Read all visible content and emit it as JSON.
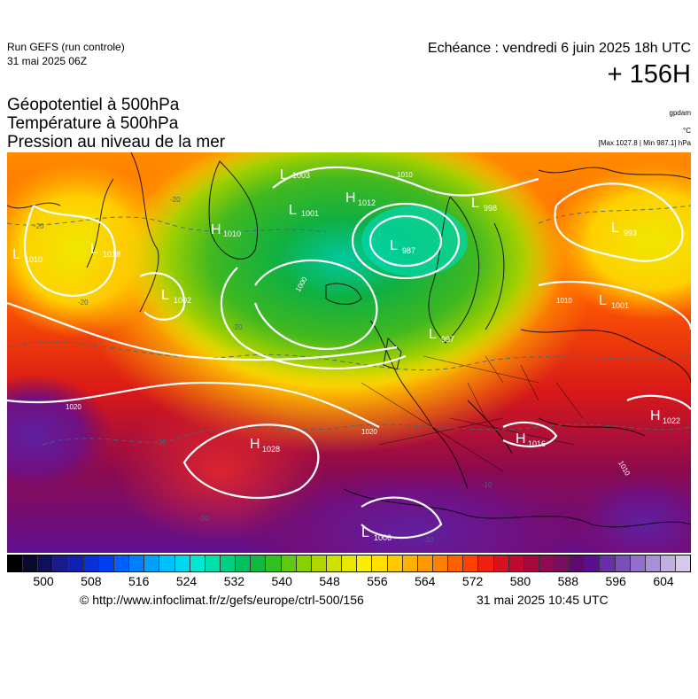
{
  "header": {
    "run_title": "Run GEFS (run controle)",
    "run_date": "31 mai 2025 06Z",
    "echeance": "Echéance : vendredi 6 juin 2025 18h UTC",
    "lead_time": "+ 156H",
    "title_lines": [
      "Géopotentiel à 500hPa",
      "Température à 500hPa",
      "Pression au niveau de la mer"
    ],
    "unit_geopotential": "gpdam",
    "unit_temperature": "°C",
    "unit_pressure": "[Max 1027.8 | Min 987.1] hPa"
  },
  "map": {
    "pressure_centers": [
      {
        "type": "L",
        "value": "1003"
      },
      {
        "type": "L",
        "value": "1001"
      },
      {
        "type": "H",
        "value": "1010"
      },
      {
        "type": "H",
        "value": "1012"
      },
      {
        "type": "L",
        "value": "987"
      },
      {
        "type": "L",
        "value": "998"
      },
      {
        "type": "L",
        "value": "993"
      },
      {
        "type": "L",
        "value": "1010"
      },
      {
        "type": "L",
        "value": "1018"
      },
      {
        "type": "L",
        "value": "1002"
      },
      {
        "type": "L",
        "value": "1001"
      },
      {
        "type": "L",
        "value": "997"
      },
      {
        "type": "H",
        "value": "1028"
      },
      {
        "type": "H",
        "value": "1016"
      },
      {
        "type": "H",
        "value": "1022"
      },
      {
        "type": "L",
        "value": "1006"
      }
    ],
    "isobar_labels": [
      "1010",
      "1000",
      "1020",
      "1010",
      "1020",
      "1010"
    ],
    "temperature_labels": [
      "-20",
      "-20",
      "-20",
      "-20",
      "-10",
      "-10",
      "-10",
      "-10"
    ]
  },
  "colorbar": {
    "tick_labels": [
      "500",
      "508",
      "516",
      "524",
      "532",
      "540",
      "548",
      "556",
      "564",
      "572",
      "580",
      "588",
      "596",
      "604"
    ],
    "colors": [
      "#000000",
      "#0a0a2e",
      "#10105a",
      "#1a1a88",
      "#1020b0",
      "#0a2ed8",
      "#0040f0",
      "#0060ff",
      "#0080ff",
      "#00a0ff",
      "#00c0ff",
      "#00d8f0",
      "#00e8d0",
      "#00e0a8",
      "#00d080",
      "#00c060",
      "#10b840",
      "#30c020",
      "#60c810",
      "#88d000",
      "#b0d800",
      "#d0e000",
      "#e8e800",
      "#f8f000",
      "#ffe000",
      "#ffc800",
      "#ffb000",
      "#ff9800",
      "#ff8000",
      "#ff6000",
      "#ff4000",
      "#f02010",
      "#d81020",
      "#c00830",
      "#a80840",
      "#900a50",
      "#780c60",
      "#600a70",
      "#581090",
      "#6830a8",
      "#7850b8",
      "#9070c8",
      "#a890d8",
      "#c0b0e0",
      "#d8c8ea"
    ]
  },
  "footer": {
    "source": "© http://www.infoclimat.fr/z/gefs/europe/ctrl-500/156",
    "issued": "31 mai 2025 10:45 UTC"
  }
}
